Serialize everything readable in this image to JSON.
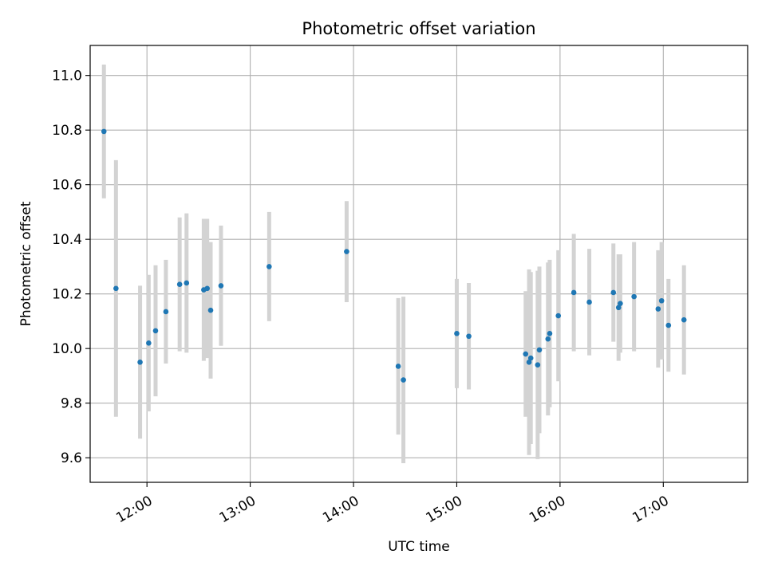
{
  "chart_data": {
    "type": "scatter",
    "title": "Photometric offset variation",
    "xlabel": "UTC time",
    "ylabel": "Photometric offset",
    "x_ticks": [
      "12:00",
      "13:00",
      "14:00",
      "15:00",
      "16:00",
      "17:00"
    ],
    "y_ticks": [
      "9.6",
      "9.8",
      "10.0",
      "10.2",
      "10.4",
      "10.6",
      "10.8",
      "11.0"
    ],
    "xlim": [
      "11:27",
      "17:49"
    ],
    "ylim": [
      9.51,
      11.11
    ],
    "grid": true,
    "legend": "none",
    "colors": {
      "point": "#1f77b4",
      "errorbar": "#d3d3d3",
      "grid": "#b0b0b0"
    },
    "series": [
      {
        "points": [
          {
            "x": "11:35",
            "y": 10.795,
            "err": 0.245
          },
          {
            "x": "11:42",
            "y": 10.22,
            "err": 0.47
          },
          {
            "x": "11:56",
            "y": 9.95,
            "err": 0.28
          },
          {
            "x": "12:01",
            "y": 10.02,
            "err": 0.25
          },
          {
            "x": "12:05",
            "y": 10.065,
            "err": 0.24
          },
          {
            "x": "12:11",
            "y": 10.135,
            "err": 0.19
          },
          {
            "x": "12:19",
            "y": 10.235,
            "err": 0.245
          },
          {
            "x": "12:23",
            "y": 10.24,
            "err": 0.255
          },
          {
            "x": "12:33",
            "y": 10.215,
            "err": 0.26
          },
          {
            "x": "12:35",
            "y": 10.22,
            "err": 0.255
          },
          {
            "x": "12:37",
            "y": 10.14,
            "err": 0.25
          },
          {
            "x": "12:43",
            "y": 10.23,
            "err": 0.22
          },
          {
            "x": "13:11",
            "y": 10.3,
            "err": 0.2
          },
          {
            "x": "13:56",
            "y": 10.355,
            "err": 0.185
          },
          {
            "x": "14:26",
            "y": 9.935,
            "err": 0.25
          },
          {
            "x": "14:29",
            "y": 9.885,
            "err": 0.305
          },
          {
            "x": "15:00",
            "y": 10.055,
            "err": 0.2
          },
          {
            "x": "15:07",
            "y": 10.045,
            "err": 0.195
          },
          {
            "x": "15:40",
            "y": 9.98,
            "err": 0.23
          },
          {
            "x": "15:42",
            "y": 9.95,
            "err": 0.34
          },
          {
            "x": "15:43",
            "y": 9.965,
            "err": 0.315
          },
          {
            "x": "15:47",
            "y": 9.94,
            "err": 0.345
          },
          {
            "x": "15:48",
            "y": 9.995,
            "err": 0.305
          },
          {
            "x": "15:53",
            "y": 10.035,
            "err": 0.28
          },
          {
            "x": "15:54",
            "y": 10.055,
            "err": 0.27
          },
          {
            "x": "15:59",
            "y": 10.12,
            "err": 0.24
          },
          {
            "x": "16:08",
            "y": 10.205,
            "err": 0.215
          },
          {
            "x": "16:17",
            "y": 10.17,
            "err": 0.195
          },
          {
            "x": "16:31",
            "y": 10.205,
            "err": 0.18
          },
          {
            "x": "16:34",
            "y": 10.15,
            "err": 0.195
          },
          {
            "x": "16:35",
            "y": 10.165,
            "err": 0.18
          },
          {
            "x": "16:43",
            "y": 10.19,
            "err": 0.2
          },
          {
            "x": "16:57",
            "y": 10.145,
            "err": 0.215
          },
          {
            "x": "16:59",
            "y": 10.175,
            "err": 0.215
          },
          {
            "x": "17:03",
            "y": 10.085,
            "err": 0.17
          },
          {
            "x": "17:12",
            "y": 10.105,
            "err": 0.2
          }
        ]
      }
    ]
  }
}
